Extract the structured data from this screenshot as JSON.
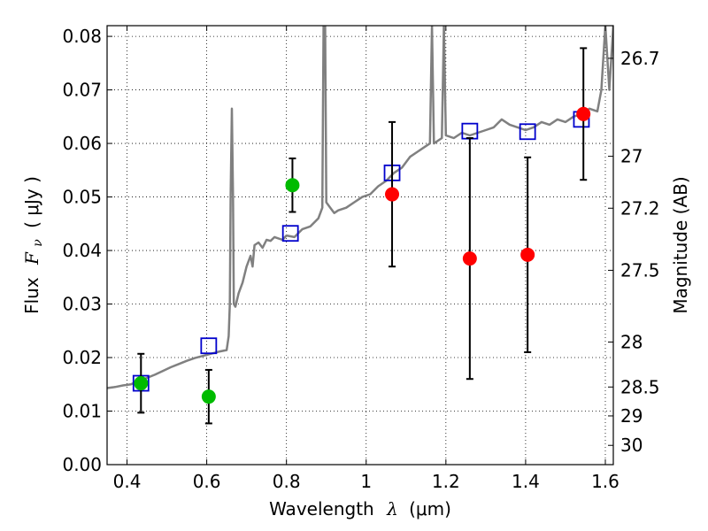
{
  "chart_data": {
    "type": "scatter",
    "xlabel_text": "Wavelength",
    "xlabel_symbol": "λ",
    "xlabel_unit": "(μm)",
    "ylabel_text": "Flux",
    "ylabel_symbol": "F",
    "ylabel_symbol_sub": "ν",
    "ylabel_unit": "( μJy )",
    "y2label": "Magnitude (AB)",
    "xlim": [
      0.35,
      1.62
    ],
    "ylim": [
      0.0,
      0.082
    ],
    "grid": true,
    "x_ticks": [
      0.4,
      0.6,
      0.8,
      1.0,
      1.2,
      1.4,
      1.6
    ],
    "x_tick_labels": [
      "0.4",
      "0.6",
      "0.8",
      "1",
      "1.2",
      "1.4",
      "1.6"
    ],
    "y_ticks": [
      0.0,
      0.01,
      0.02,
      0.03,
      0.04,
      0.05,
      0.06,
      0.07,
      0.08
    ],
    "y_tick_labels": [
      "0.00",
      "0.01",
      "0.02",
      "0.03",
      "0.04",
      "0.05",
      "0.06",
      "0.07",
      "0.08"
    ],
    "mag_ticks": [
      {
        "label": "26.7",
        "flux": 0.0759
      },
      {
        "label": "27",
        "flux": 0.0576
      },
      {
        "label": "27.2",
        "flux": 0.0479
      },
      {
        "label": "27.5",
        "flux": 0.0363
      },
      {
        "label": "28",
        "flux": 0.0229
      },
      {
        "label": "28.5",
        "flux": 0.0145
      },
      {
        "label": "29",
        "flux": 0.0091
      },
      {
        "label": "30",
        "flux": 0.0036
      }
    ],
    "series": [
      {
        "style": "line",
        "color": "#808080",
        "points": [
          [
            0.35,
            0.0143
          ],
          [
            0.37,
            0.0145
          ],
          [
            0.39,
            0.0148
          ],
          [
            0.41,
            0.015
          ],
          [
            0.43,
            0.0157
          ],
          [
            0.45,
            0.0162
          ],
          [
            0.47,
            0.0168
          ],
          [
            0.49,
            0.0175
          ],
          [
            0.51,
            0.0182
          ],
          [
            0.53,
            0.0188
          ],
          [
            0.55,
            0.0194
          ],
          [
            0.57,
            0.0199
          ],
          [
            0.59,
            0.0203
          ],
          [
            0.61,
            0.0207
          ],
          [
            0.63,
            0.0211
          ],
          [
            0.65,
            0.0214
          ],
          [
            0.655,
            0.024
          ],
          [
            0.658,
            0.03
          ],
          [
            0.66,
            0.05
          ],
          [
            0.663,
            0.0665
          ],
          [
            0.666,
            0.05
          ],
          [
            0.668,
            0.03
          ],
          [
            0.672,
            0.0295
          ],
          [
            0.68,
            0.032
          ],
          [
            0.69,
            0.034
          ],
          [
            0.7,
            0.037
          ],
          [
            0.71,
            0.039
          ],
          [
            0.715,
            0.037
          ],
          [
            0.72,
            0.041
          ],
          [
            0.73,
            0.0415
          ],
          [
            0.74,
            0.0405
          ],
          [
            0.75,
            0.042
          ],
          [
            0.76,
            0.0418
          ],
          [
            0.77,
            0.0425
          ],
          [
            0.79,
            0.042
          ],
          [
            0.8,
            0.0428
          ],
          [
            0.82,
            0.0425
          ],
          [
            0.84,
            0.044
          ],
          [
            0.86,
            0.0445
          ],
          [
            0.88,
            0.046
          ],
          [
            0.89,
            0.048
          ],
          [
            0.893,
            0.082
          ],
          [
            0.897,
            0.082
          ],
          [
            0.9,
            0.049
          ],
          [
            0.91,
            0.048
          ],
          [
            0.92,
            0.047
          ],
          [
            0.93,
            0.0475
          ],
          [
            0.95,
            0.048
          ],
          [
            0.97,
            0.049
          ],
          [
            0.99,
            0.05
          ],
          [
            1.01,
            0.0505
          ],
          [
            1.03,
            0.052
          ],
          [
            1.05,
            0.053
          ],
          [
            1.07,
            0.0545
          ],
          [
            1.09,
            0.0555
          ],
          [
            1.11,
            0.0575
          ],
          [
            1.13,
            0.0585
          ],
          [
            1.15,
            0.0595
          ],
          [
            1.16,
            0.06
          ],
          [
            1.165,
            0.082
          ],
          [
            1.17,
            0.06
          ],
          [
            1.18,
            0.0605
          ],
          [
            1.19,
            0.061
          ],
          [
            1.195,
            0.082
          ],
          [
            1.2,
            0.0615
          ],
          [
            1.22,
            0.061
          ],
          [
            1.24,
            0.062
          ],
          [
            1.26,
            0.0615
          ],
          [
            1.28,
            0.062
          ],
          [
            1.3,
            0.0625
          ],
          [
            1.32,
            0.063
          ],
          [
            1.34,
            0.0645
          ],
          [
            1.36,
            0.0635
          ],
          [
            1.38,
            0.063
          ],
          [
            1.4,
            0.0625
          ],
          [
            1.42,
            0.063
          ],
          [
            1.44,
            0.064
          ],
          [
            1.46,
            0.0635
          ],
          [
            1.48,
            0.0645
          ],
          [
            1.5,
            0.064
          ],
          [
            1.52,
            0.065
          ],
          [
            1.54,
            0.0655
          ],
          [
            1.56,
            0.0665
          ],
          [
            1.58,
            0.066
          ],
          [
            1.59,
            0.07
          ],
          [
            1.6,
            0.082
          ],
          [
            1.61,
            0.07
          ],
          [
            1.62,
            0.082
          ]
        ]
      },
      {
        "style": "open-square",
        "color": "#0000cc",
        "x": [
          0.435,
          0.605,
          0.81,
          1.065,
          1.26,
          1.405,
          1.54
        ],
        "y": [
          0.0152,
          0.0222,
          0.0432,
          0.0545,
          0.0623,
          0.0622,
          0.0645
        ]
      },
      {
        "style": "filled-circle",
        "color": "#00bb00",
        "x": [
          0.435,
          0.605,
          0.815
        ],
        "y": [
          0.0152,
          0.0127,
          0.0522
        ],
        "err": [
          0.0055,
          0.005,
          0.005
        ]
      },
      {
        "style": "filled-circle",
        "color": "#ff0000",
        "x": [
          1.065,
          1.26,
          1.405,
          1.545
        ],
        "y": [
          0.0505,
          0.0385,
          0.0392,
          0.0655
        ],
        "err": [
          0.0135,
          0.0225,
          0.0182,
          0.0123
        ]
      }
    ]
  }
}
